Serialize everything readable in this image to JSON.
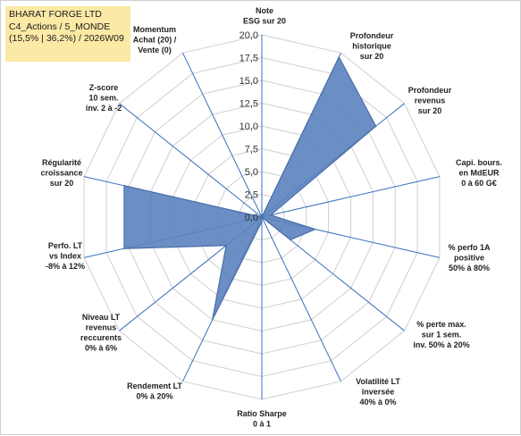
{
  "title_box": {
    "line1": "BHARAT FORGE LTD",
    "line2": "C4_Actions / 5_MONDE",
    "line3": "(15,5% | 36,2%) / 2026W09"
  },
  "chart_data": {
    "type": "radar",
    "rmax": 20,
    "tick_labels": [
      "0,0",
      "2,5",
      "5,0",
      "7,5",
      "10,0",
      "12,5",
      "15,0",
      "17,5",
      "20,0"
    ],
    "axes": [
      [
        "Note",
        "ESG sur 20"
      ],
      [
        "Profondeur",
        "historique",
        "sur 20"
      ],
      [
        "Profondeur",
        "revenus",
        "sur 20"
      ],
      [
        "Capi. bours.",
        "en MdEUR",
        "0 à 60 G€"
      ],
      [
        "% perfo 1A",
        "positive",
        "50% à 80%"
      ],
      [
        "% perte max.",
        "sur 1 sem.",
        "inv. 50% à 20%"
      ],
      [
        "Volatilité LT",
        "inversée",
        "40% à 0%"
      ],
      [
        "Ratio Sharpe",
        "0 à 1"
      ],
      [
        "Rendement LT",
        "0% à 20%"
      ],
      [
        "Niveau LT",
        "revenus",
        "reccurents",
        "0% à 6%"
      ],
      [
        "Perfo. LT",
        "vs Index",
        "-8% à 12%"
      ],
      [
        "Régularité",
        "croissance",
        "sur 20"
      ],
      [
        "Z-score",
        "10 sem.",
        "inv. 2 à -2"
      ],
      [
        "Momentum",
        "Achat (20) /",
        "Vente (0)"
      ]
    ],
    "values": [
      0,
      19.5,
      16,
      1,
      6,
      4,
      0,
      0.5,
      12.5,
      5,
      15.5,
      15.5,
      0,
      0
    ],
    "colors": {
      "fill": "#5b82be",
      "stroke": "#4a6fa8",
      "grid": "#d0d0d0",
      "spoke": "#3b6fbf"
    }
  }
}
